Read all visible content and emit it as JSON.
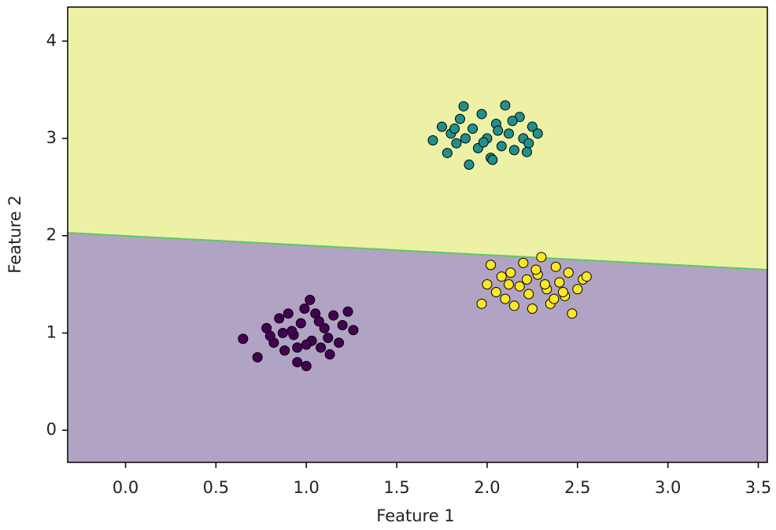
{
  "chart_data": {
    "type": "scatter",
    "xlabel": "Feature 1",
    "ylabel": "Feature 2",
    "xlim": [
      -0.32,
      3.55
    ],
    "ylim": [
      -0.33,
      4.35
    ],
    "xticks": [
      {
        "value": 0,
        "label": "0.0"
      },
      0.5,
      {
        "value": 1,
        "label": "1.0"
      },
      1.5,
      {
        "value": 2,
        "label": "2.0"
      },
      2.5,
      {
        "value": 3,
        "label": "3.0"
      },
      3.5
    ],
    "yticks": [
      0,
      1,
      2,
      3,
      4
    ],
    "decision_boundary": {
      "x": [
        -0.32,
        3.55
      ],
      "y": [
        2.03,
        1.65
      ],
      "color": "#5ec962"
    },
    "region_colors": [
      "#b1a3c4",
      "#ecf1a6"
    ],
    "series": [
      {
        "color": "#440154",
        "x": [
          0.65,
          0.73,
          0.78,
          0.82,
          0.85,
          0.88,
          0.9,
          0.93,
          0.95,
          0.97,
          1.0,
          1.02,
          1.03,
          1.05,
          1.08,
          1.1,
          1.12,
          1.15,
          1.18,
          1.2,
          1.23,
          1.26,
          0.8,
          0.92,
          1.0,
          1.07,
          0.87,
          1.13,
          0.99,
          0.95
        ],
        "values": [
          0.94,
          0.75,
          1.05,
          0.9,
          1.15,
          0.82,
          1.2,
          0.98,
          0.7,
          1.1,
          0.66,
          1.34,
          0.92,
          1.2,
          0.85,
          1.05,
          0.95,
          1.18,
          0.9,
          1.08,
          1.22,
          1.03,
          0.97,
          1.02,
          0.88,
          1.12,
          1.0,
          0.78,
          1.25,
          0.85
        ]
      },
      {
        "color": "#21908d",
        "x": [
          1.7,
          1.75,
          1.78,
          1.8,
          1.83,
          1.85,
          1.87,
          1.9,
          1.92,
          1.95,
          1.97,
          2.0,
          2.02,
          2.05,
          2.08,
          2.1,
          2.12,
          2.15,
          2.18,
          2.2,
          2.23,
          2.25,
          2.28,
          1.88,
          1.98,
          2.06,
          2.14,
          1.82,
          2.22,
          2.03
        ],
        "values": [
          2.98,
          3.12,
          2.85,
          3.05,
          2.95,
          3.2,
          3.33,
          2.73,
          3.1,
          2.9,
          3.25,
          3.0,
          2.8,
          3.15,
          2.92,
          3.34,
          3.05,
          2.88,
          3.22,
          3.0,
          2.95,
          3.12,
          3.05,
          3.0,
          2.96,
          3.08,
          3.18,
          3.1,
          2.86,
          2.78
        ]
      },
      {
        "color": "#fde725",
        "x": [
          1.97,
          2.0,
          2.02,
          2.05,
          2.08,
          2.1,
          2.13,
          2.15,
          2.18,
          2.2,
          2.23,
          2.25,
          2.28,
          2.3,
          2.33,
          2.35,
          2.38,
          2.4,
          2.43,
          2.45,
          2.47,
          2.5,
          2.53,
          2.55,
          2.22,
          2.32,
          2.42,
          2.12,
          2.27,
          2.37
        ],
        "values": [
          1.3,
          1.5,
          1.7,
          1.42,
          1.58,
          1.35,
          1.62,
          1.28,
          1.48,
          1.72,
          1.4,
          1.25,
          1.6,
          1.78,
          1.45,
          1.3,
          1.68,
          1.52,
          1.38,
          1.62,
          1.2,
          1.45,
          1.55,
          1.58,
          1.55,
          1.5,
          1.42,
          1.5,
          1.65,
          1.35
        ]
      }
    ]
  }
}
